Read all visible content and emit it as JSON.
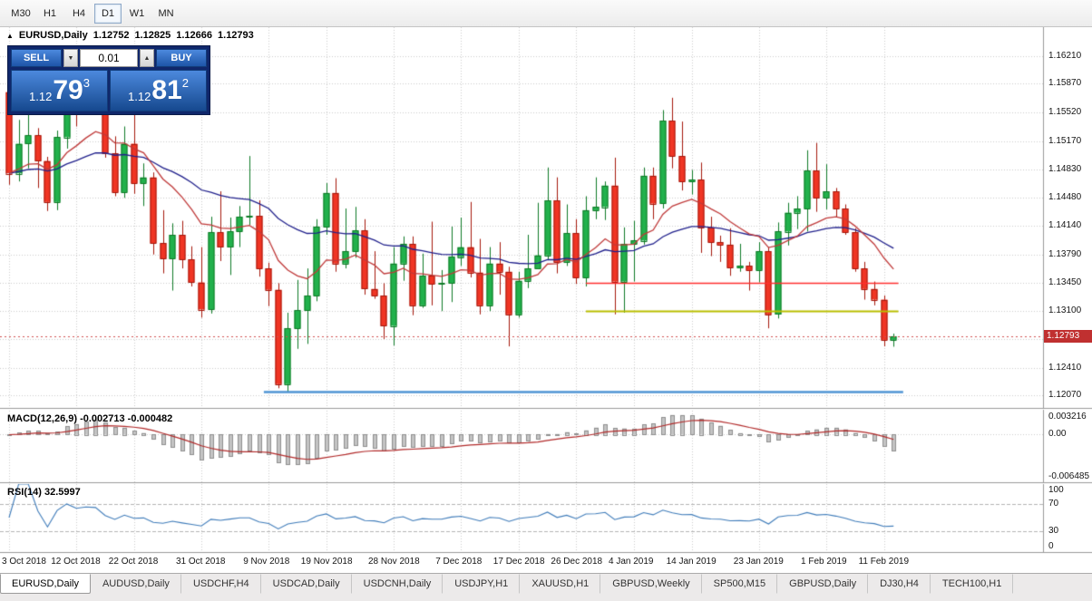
{
  "toolbar": {
    "timeframes": [
      {
        "label": "M30",
        "active": false
      },
      {
        "label": "H1",
        "active": false
      },
      {
        "label": "H4",
        "active": false
      },
      {
        "label": "D1",
        "active": true
      },
      {
        "label": "W1",
        "active": false
      },
      {
        "label": "MN",
        "active": false
      }
    ]
  },
  "chart": {
    "readout": {
      "symbol": "EURUSD,Daily",
      "open": "1.12752",
      "high": "1.12825",
      "low": "1.12666",
      "close": "1.12793"
    },
    "one_click": {
      "sell_label": "SELL",
      "buy_label": "BUY",
      "volume": "0.01",
      "spin_up_icon": "▲",
      "spin_down_icon": "▼",
      "sell_price": {
        "big": "1.12",
        "pips": "79",
        "point": "3"
      },
      "buy_price": {
        "big": "1.12",
        "pips": "81",
        "point": "2"
      }
    },
    "price_tag": "1.12793",
    "macd_label": "MACD(12,26,9) -0.002713 -0.000482",
    "rsi_label": "RSI(14) 32.5997",
    "price_axis": [
      "1.16210",
      "1.15870",
      "1.15520",
      "1.15170",
      "1.14830",
      "1.14480",
      "1.14140",
      "1.13790",
      "1.13450",
      "1.13100",
      "1.12760",
      "1.12410",
      "1.12070"
    ],
    "macd_axis": [
      "0.003216",
      "0.00",
      "-0.006485"
    ],
    "rsi_axis": [
      "100",
      "70",
      "30",
      "0"
    ]
  },
  "chart_data": {
    "type": "candlestick",
    "symbol": "EURUSD",
    "timeframe": "Daily",
    "price_range": [
      1.1192,
      1.1656
    ],
    "current_price": 1.12793,
    "up_color": "#22b14c",
    "down_color": "#f03524",
    "candles": [
      [
        1.1577,
        1.1595,
        1.1464,
        1.1478
      ],
      [
        1.1478,
        1.1543,
        1.1468,
        1.1514
      ],
      [
        1.1514,
        1.155,
        1.1484,
        1.1524
      ],
      [
        1.1524,
        1.1533,
        1.146,
        1.1493
      ],
      [
        1.1493,
        1.1498,
        1.1432,
        1.1443
      ],
      [
        1.1443,
        1.153,
        1.1433,
        1.1522
      ],
      [
        1.1522,
        1.1599,
        1.1508,
        1.159
      ],
      [
        1.159,
        1.1605,
        1.1535,
        1.1562
      ],
      [
        1.1562,
        1.1606,
        1.1553,
        1.1579
      ],
      [
        1.1579,
        1.1588,
        1.1564,
        1.1575
      ],
      [
        1.1575,
        1.1581,
        1.1497,
        1.1502
      ],
      [
        1.1502,
        1.1523,
        1.145,
        1.1455
      ],
      [
        1.1455,
        1.1535,
        1.1448,
        1.1514
      ],
      [
        1.1514,
        1.155,
        1.1453,
        1.1466
      ],
      [
        1.1466,
        1.149,
        1.1438,
        1.1473
      ],
      [
        1.1473,
        1.1479,
        1.1379,
        1.1393
      ],
      [
        1.1393,
        1.1433,
        1.1356,
        1.1374
      ],
      [
        1.1374,
        1.1417,
        1.1335,
        1.1403
      ],
      [
        1.1403,
        1.142,
        1.1362,
        1.1373
      ],
      [
        1.1373,
        1.1389,
        1.134,
        1.1345
      ],
      [
        1.1345,
        1.1388,
        1.1302,
        1.1312
      ],
      [
        1.1312,
        1.1425,
        1.1307,
        1.1406
      ],
      [
        1.1406,
        1.1456,
        1.1371,
        1.1388
      ],
      [
        1.1388,
        1.1424,
        1.1354,
        1.1407
      ],
      [
        1.1407,
        1.1438,
        1.1388,
        1.1425
      ],
      [
        1.1425,
        1.1499,
        1.1415,
        1.1426
      ],
      [
        1.1426,
        1.1445,
        1.1352,
        1.1362
      ],
      [
        1.1362,
        1.1369,
        1.1316,
        1.1336
      ],
      [
        1.1336,
        1.1344,
        1.1216,
        1.1221
      ],
      [
        1.1221,
        1.1308,
        1.1211,
        1.1289
      ],
      [
        1.1289,
        1.1348,
        1.1264,
        1.1311
      ],
      [
        1.1311,
        1.1362,
        1.127,
        1.1329
      ],
      [
        1.1329,
        1.1422,
        1.1322,
        1.1413
      ],
      [
        1.1413,
        1.1466,
        1.1403,
        1.1454
      ],
      [
        1.1454,
        1.1472,
        1.1358,
        1.1368
      ],
      [
        1.1368,
        1.1435,
        1.1362,
        1.1383
      ],
      [
        1.1383,
        1.1437,
        1.1375,
        1.1408
      ],
      [
        1.1408,
        1.1422,
        1.133,
        1.1337
      ],
      [
        1.1337,
        1.1383,
        1.1325,
        1.1329
      ],
      [
        1.1329,
        1.1344,
        1.1276,
        1.1292
      ],
      [
        1.1292,
        1.1388,
        1.1268,
        1.1368
      ],
      [
        1.1368,
        1.1401,
        1.1347,
        1.1392
      ],
      [
        1.1392,
        1.1401,
        1.1305,
        1.1317
      ],
      [
        1.1317,
        1.138,
        1.1314,
        1.1353
      ],
      [
        1.1353,
        1.1419,
        1.1317,
        1.1343
      ],
      [
        1.1343,
        1.136,
        1.131,
        1.1344
      ],
      [
        1.1344,
        1.1413,
        1.1321,
        1.1376
      ],
      [
        1.1376,
        1.1424,
        1.1365,
        1.1388
      ],
      [
        1.1388,
        1.1443,
        1.1351,
        1.1357
      ],
      [
        1.1357,
        1.1398,
        1.1306,
        1.1317
      ],
      [
        1.1317,
        1.1388,
        1.131,
        1.1368
      ],
      [
        1.1368,
        1.1394,
        1.133,
        1.1358
      ],
      [
        1.1358,
        1.1364,
        1.1267,
        1.1306
      ],
      [
        1.1306,
        1.1358,
        1.1302,
        1.1347
      ],
      [
        1.1347,
        1.1403,
        1.1338,
        1.1362
      ],
      [
        1.1362,
        1.1442,
        1.1361,
        1.1378
      ],
      [
        1.1378,
        1.1485,
        1.1372,
        1.1445
      ],
      [
        1.1445,
        1.1473,
        1.1356,
        1.137
      ],
      [
        1.137,
        1.144,
        1.1365,
        1.1405
      ],
      [
        1.1405,
        1.1422,
        1.1343,
        1.1351
      ],
      [
        1.1351,
        1.145,
        1.134,
        1.1433
      ],
      [
        1.1433,
        1.1473,
        1.1422,
        1.1437
      ],
      [
        1.1437,
        1.1468,
        1.1421,
        1.1463
      ],
      [
        1.1463,
        1.1497,
        1.1306,
        1.1346
      ],
      [
        1.1346,
        1.1412,
        1.1308,
        1.1392
      ],
      [
        1.1392,
        1.142,
        1.1346,
        1.1396
      ],
      [
        1.1396,
        1.1485,
        1.1391,
        1.1475
      ],
      [
        1.1475,
        1.1485,
        1.1422,
        1.1441
      ],
      [
        1.1441,
        1.1555,
        1.1435,
        1.1542
      ],
      [
        1.1542,
        1.157,
        1.1484,
        1.1499
      ],
      [
        1.1499,
        1.1541,
        1.1457,
        1.1468
      ],
      [
        1.1468,
        1.1482,
        1.1452,
        1.147
      ],
      [
        1.147,
        1.1491,
        1.1381,
        1.1412
      ],
      [
        1.1412,
        1.1425,
        1.1377,
        1.1394
      ],
      [
        1.1394,
        1.1402,
        1.137,
        1.1391
      ],
      [
        1.1391,
        1.1411,
        1.1353,
        1.1363
      ],
      [
        1.1363,
        1.1392,
        1.1358,
        1.1365
      ],
      [
        1.1365,
        1.137,
        1.1335,
        1.136
      ],
      [
        1.136,
        1.1394,
        1.1345,
        1.1383
      ],
      [
        1.1383,
        1.1388,
        1.1289,
        1.1306
      ],
      [
        1.1306,
        1.1418,
        1.1301,
        1.1407
      ],
      [
        1.1407,
        1.1442,
        1.139,
        1.143
      ],
      [
        1.143,
        1.145,
        1.141,
        1.1435
      ],
      [
        1.1435,
        1.1506,
        1.1407,
        1.1481
      ],
      [
        1.1481,
        1.1515,
        1.1431,
        1.1448
      ],
      [
        1.1448,
        1.1489,
        1.1434,
        1.1456
      ],
      [
        1.1456,
        1.146,
        1.1424,
        1.1435
      ],
      [
        1.1435,
        1.144,
        1.1403,
        1.1406
      ],
      [
        1.1406,
        1.1411,
        1.1358,
        1.1362
      ],
      [
        1.1362,
        1.137,
        1.1324,
        1.1337
      ],
      [
        1.1337,
        1.1346,
        1.1317,
        1.1324
      ],
      [
        1.1324,
        1.1329,
        1.1267,
        1.1275
      ],
      [
        1.1275,
        1.12825,
        1.12666,
        1.12793
      ]
    ],
    "date_labels": [
      {
        "label": "3 Oct 2018",
        "index": 0
      },
      {
        "label": "12 Oct 2018",
        "index": 7
      },
      {
        "label": "22 Oct 2018",
        "index": 13
      },
      {
        "label": "31 Oct 2018",
        "index": 20
      },
      {
        "label": "9 Nov 2018",
        "index": 27
      },
      {
        "label": "19 Nov 2018",
        "index": 33
      },
      {
        "label": "28 Nov 2018",
        "index": 40
      },
      {
        "label": "7 Dec 2018",
        "index": 47
      },
      {
        "label": "17 Dec 2018",
        "index": 53
      },
      {
        "label": "26 Dec 2018",
        "index": 59
      },
      {
        "label": "4 Jan 2019",
        "index": 65
      },
      {
        "label": "14 Jan 2019",
        "index": 71
      },
      {
        "label": "23 Jan 2019",
        "index": 78
      },
      {
        "label": "1 Feb 2019",
        "index": 85
      },
      {
        "label": "11 Feb 2019",
        "index": 91
      }
    ],
    "hlines": [
      {
        "price": 1.1345,
        "color": "#ff2e2e",
        "width": 1.6,
        "from_index": 60,
        "to_index": 92.5
      },
      {
        "price": 1.131,
        "color": "#b9be00",
        "width": 2,
        "from_index": 60,
        "to_index": 92.5
      },
      {
        "price": 1.1212,
        "color": "#4f94d4",
        "width": 2.4,
        "from_index": 26.5,
        "to_index": 93
      }
    ],
    "moving_averages": [
      {
        "period": 34,
        "color": "#20208c"
      },
      {
        "period": 13,
        "color": "#c03a3a"
      }
    ],
    "macd": {
      "params": "12,26,9",
      "value": -0.002713,
      "signal_value": -0.000482,
      "range": [
        -0.007,
        0.0036
      ],
      "bar_color": "#c4c4c4",
      "signal_color": "#b22a2a"
    },
    "rsi": {
      "period": 14,
      "value": 32.5997,
      "levels": [
        70,
        30
      ],
      "range": [
        0,
        100
      ],
      "line_color": "#3f7cba"
    }
  },
  "bottom_tabs": [
    {
      "label": "EURUSD,Daily",
      "active": true
    },
    {
      "label": "AUDUSD,Daily",
      "active": false
    },
    {
      "label": "USDCHF,H4",
      "active": false
    },
    {
      "label": "USDCAD,Daily",
      "active": false
    },
    {
      "label": "USDCNH,Daily",
      "active": false
    },
    {
      "label": "USDJPY,H1",
      "active": false
    },
    {
      "label": "XAUUSD,H1",
      "active": false
    },
    {
      "label": "GBPUSD,Weekly",
      "active": false
    },
    {
      "label": "SP500,M15",
      "active": false
    },
    {
      "label": "GBPUSD,Daily",
      "active": false
    },
    {
      "label": "DJ30,H4",
      "active": false
    },
    {
      "label": "TECH100,H1",
      "active": false
    }
  ]
}
